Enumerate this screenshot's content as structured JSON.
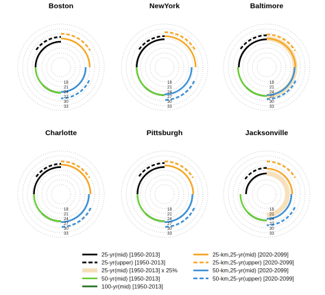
{
  "chart_data": {
    "type": "radial-arc",
    "description_free": true,
    "ring_ticks": [
      "18",
      "21",
      "24",
      "27",
      "30",
      "33"
    ],
    "rlim": [
      18,
      33
    ],
    "grid": "dotted rings",
    "legend_position": "bottom",
    "series": [
      {
        "key": "s1",
        "name": "25-yr(mid) [1950-2013]",
        "color": "#000000",
        "style": "solid"
      },
      {
        "key": "s2",
        "name": "25-yr(upper) [1950-2013]",
        "color": "#000000",
        "style": "dashed"
      },
      {
        "key": "s3",
        "name": "25-yr(mid) [1950-2013] x 25%",
        "color": "#f5dfb8",
        "style": "band"
      },
      {
        "key": "s4",
        "name": "50-yr(mid) [1950-2013]",
        "color": "#66cc33",
        "style": "solid"
      },
      {
        "key": "s5",
        "name": "100-yr(mid) [1950-2013]",
        "color": "#1a6b1a",
        "style": "solid"
      },
      {
        "key": "s6",
        "name": "25-km,25-yr(mid) [2020-2099]",
        "color": "#f5a623",
        "style": "solid"
      },
      {
        "key": "s7",
        "name": "25-km,25-yr(upper) [2020-2099]",
        "color": "#f5a623",
        "style": "dashed"
      },
      {
        "key": "s8",
        "name": "50-km,25-yr(mid) [2020-2099]",
        "color": "#3a8fd6",
        "style": "solid"
      },
      {
        "key": "s9",
        "name": "50-km,25-yr(upper) [2020-2099]",
        "color": "#3a8fd6",
        "style": "dashed"
      }
    ],
    "panels": [
      {
        "title": "Boston",
        "values": {
          "s1": 24.5,
          "s2": 27.5,
          "s3": null,
          "s4": 24.5,
          "s5": 24.5,
          "s6": 26.5,
          "s7": 29.5,
          "s8": 24.0,
          "s9": 28.0
        }
      },
      {
        "title": "NewYork",
        "values": {
          "s1": 26.0,
          "s2": 28.0,
          "s3": null,
          "s4": 26.0,
          "s5": 26.0,
          "s6": 28.0,
          "s7": 30.5,
          "s8": 25.5,
          "s9": 29.0
        }
      },
      {
        "title": "Baltimore",
        "values": {
          "s1": 26.0,
          "s2": 28.5,
          "s3": 26.5,
          "s4": 26.5,
          "s5": 26.5,
          "s6": 26.5,
          "s7": 29.0,
          "s8": 26.0,
          "s9": 28.5
        }
      },
      {
        "title": "Charlotte",
        "values": {
          "s1": 25.5,
          "s2": 27.5,
          "s3": null,
          "s4": 25.5,
          "s5": 25.5,
          "s6": 27.0,
          "s7": 29.0,
          "s8": 26.0,
          "s9": 29.0
        }
      },
      {
        "title": "Pittsburgh",
        "values": {
          "s1": 25.5,
          "s2": 28.0,
          "s3": null,
          "s4": 25.5,
          "s5": 25.5,
          "s6": 26.5,
          "s7": 29.0,
          "s8": 26.0,
          "s9": 29.0
        }
      },
      {
        "title": "Jacksonville",
        "values": {
          "s1": 21.5,
          "s2": 25.0,
          "s3": 21.5,
          "s4": 25.0,
          "s5": 25.0,
          "s6": 24.5,
          "s7": 29.0,
          "s8": 24.0,
          "s9": 28.0
        }
      }
    ]
  }
}
